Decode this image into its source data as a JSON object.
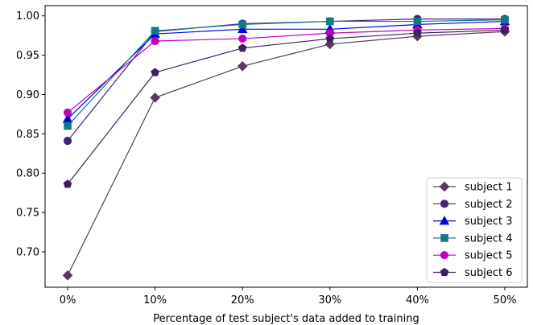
{
  "chart_data": {
    "type": "line",
    "xlabel": "Percentage of test subject's data added to training",
    "ylabel": "",
    "x": [
      "0%",
      "10%",
      "20%",
      "30%",
      "40%",
      "50%"
    ],
    "ylim": [
      0.655,
      1.013
    ],
    "yticks": [
      "0.70",
      "0.75",
      "0.80",
      "0.85",
      "0.90",
      "0.95",
      "1.00"
    ],
    "ytick_values": [
      0.7,
      0.75,
      0.8,
      0.85,
      0.9,
      0.95,
      1.0
    ],
    "grid": false,
    "legend_position": "lower-right",
    "series": [
      {
        "name": "subject 1",
        "marker": "diamond",
        "color": "#5c3a5e",
        "values": [
          0.67,
          0.896,
          0.936,
          0.964,
          0.974,
          0.98
        ]
      },
      {
        "name": "subject 2",
        "marker": "circle",
        "color": "#40237a",
        "values": [
          0.841,
          0.98,
          0.99,
          0.993,
          0.996,
          0.996
        ]
      },
      {
        "name": "subject 3",
        "marker": "triangle",
        "color": "#0000e0",
        "values": [
          0.869,
          0.977,
          0.983,
          0.983,
          0.989,
          0.993
        ]
      },
      {
        "name": "subject 4",
        "marker": "square",
        "color": "#127a8a",
        "values": [
          0.86,
          0.981,
          0.989,
          0.993,
          0.993,
          0.995
        ]
      },
      {
        "name": "subject 5",
        "marker": "circle",
        "color": "#c000c0",
        "values": [
          0.877,
          0.968,
          0.971,
          0.978,
          0.982,
          0.984
        ]
      },
      {
        "name": "subject 6",
        "marker": "pentagon",
        "color": "#3e2060",
        "values": [
          0.786,
          0.928,
          0.959,
          0.971,
          0.978,
          0.982
        ]
      }
    ]
  }
}
